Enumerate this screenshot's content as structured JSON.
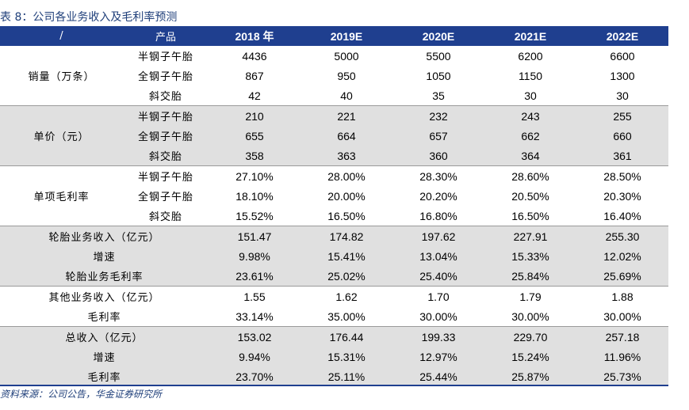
{
  "title": "表 8：公司各业务收入及毛利率预测",
  "header": {
    "c0": "/",
    "c1": "产品",
    "years": [
      "2018 年",
      "2019E",
      "2020E",
      "2021E",
      "2022E"
    ]
  },
  "groups": [
    {
      "label": "销量（万条）",
      "shade": false,
      "rows": [
        {
          "product": "半钢子午胎",
          "values": [
            "4436",
            "5000",
            "5500",
            "6200",
            "6600"
          ]
        },
        {
          "product": "全钢子午胎",
          "values": [
            "867",
            "950",
            "1050",
            "1150",
            "1300"
          ]
        },
        {
          "product": "斜交胎",
          "values": [
            "42",
            "40",
            "35",
            "30",
            "30"
          ]
        }
      ]
    },
    {
      "label": "单价（元）",
      "shade": true,
      "rows": [
        {
          "product": "半钢子午胎",
          "values": [
            "210",
            "221",
            "232",
            "243",
            "255"
          ]
        },
        {
          "product": "全钢子午胎",
          "values": [
            "655",
            "664",
            "657",
            "662",
            "660"
          ]
        },
        {
          "product": "斜交胎",
          "values": [
            "358",
            "363",
            "360",
            "364",
            "361"
          ]
        }
      ]
    },
    {
      "label": "单项毛利率",
      "shade": false,
      "rows": [
        {
          "product": "半钢子午胎",
          "values": [
            "27.10%",
            "28.00%",
            "28.30%",
            "28.60%",
            "28.50%"
          ]
        },
        {
          "product": "全钢子午胎",
          "values": [
            "18.10%",
            "20.00%",
            "20.20%",
            "20.50%",
            "20.30%"
          ]
        },
        {
          "product": "斜交胎",
          "values": [
            "15.52%",
            "16.50%",
            "16.80%",
            "16.50%",
            "16.40%"
          ]
        }
      ]
    },
    {
      "shade": true,
      "rows": [
        {
          "label": "轮胎业务收入（亿元）",
          "values": [
            "151.47",
            "174.82",
            "197.62",
            "227.91",
            "255.30"
          ]
        },
        {
          "label": "增速",
          "values": [
            "9.98%",
            "15.41%",
            "13.04%",
            "15.33%",
            "12.02%"
          ]
        },
        {
          "label": "轮胎业务毛利率",
          "values": [
            "23.61%",
            "25.02%",
            "25.40%",
            "25.84%",
            "25.69%"
          ]
        }
      ]
    },
    {
      "shade": false,
      "rows": [
        {
          "label": "其他业务收入（亿元）",
          "values": [
            "1.55",
            "1.62",
            "1.70",
            "1.79",
            "1.88"
          ]
        },
        {
          "label": "毛利率",
          "values": [
            "33.14%",
            "35.00%",
            "30.00%",
            "30.00%",
            "30.00%"
          ]
        }
      ]
    },
    {
      "shade": true,
      "rows": [
        {
          "label": "总收入（亿元）",
          "values": [
            "153.02",
            "176.44",
            "199.33",
            "229.70",
            "257.18"
          ]
        },
        {
          "label": "增速",
          "values": [
            "9.94%",
            "15.31%",
            "12.97%",
            "15.24%",
            "11.96%"
          ]
        },
        {
          "label": "毛利率",
          "values": [
            "23.70%",
            "25.11%",
            "25.44%",
            "25.87%",
            "25.73%"
          ]
        }
      ]
    }
  ],
  "source": "资料来源：公司公告，华金证券研究所"
}
